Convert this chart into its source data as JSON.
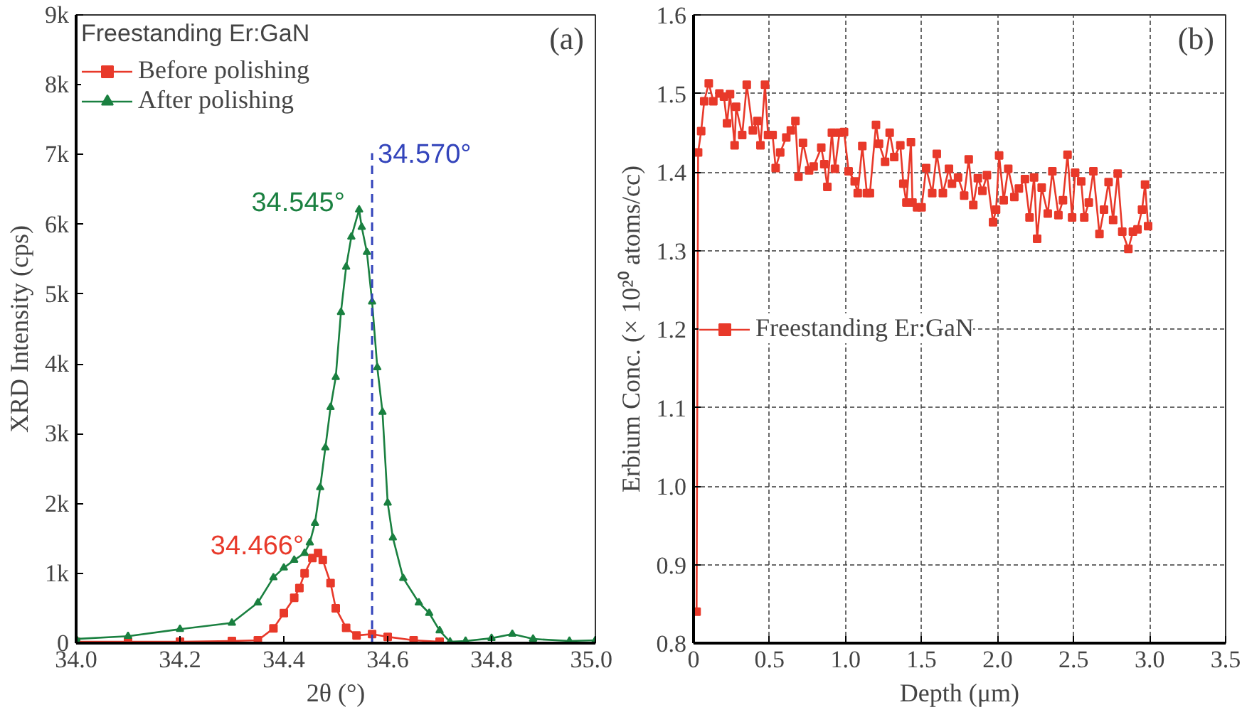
{
  "chart_data": [
    {
      "type": "line",
      "xlabel": "2θ (°)",
      "ylabel": "XRD Intensity (cps)",
      "legend_title": "Freestanding Er:GaN",
      "legend": "top left",
      "grid": false,
      "xlim": [
        34.0,
        35.0
      ],
      "xticks": [
        {
          "value": 34.0,
          "label": "34.0"
        },
        34.2,
        34.4,
        34.6,
        34.8,
        {
          "value": 35.0,
          "label": "35.0"
        }
      ],
      "ylim": [
        0,
        9000
      ],
      "yticks": [
        {
          "value": 0,
          "label": "0"
        },
        {
          "value": 1000,
          "label": "1k"
        },
        {
          "value": 2000,
          "label": "2k"
        },
        {
          "value": 3000,
          "label": "3k"
        },
        {
          "value": 4000,
          "label": "4k"
        },
        {
          "value": 5000,
          "label": "5k"
        },
        {
          "value": 6000,
          "label": "6k"
        },
        {
          "value": 7000,
          "label": "7k"
        },
        {
          "value": 8000,
          "label": "8k"
        },
        {
          "value": 9000,
          "label": "9k"
        }
      ],
      "series": [
        {
          "name": "Before polishing",
          "color": "#e8392a",
          "marker": "square",
          "x": [
            34.0,
            34.1,
            34.2,
            34.3,
            34.35,
            34.38,
            34.4,
            34.42,
            34.43,
            34.44,
            34.455,
            34.466,
            34.475,
            34.49,
            34.5,
            34.52,
            34.54,
            34.57,
            34.6,
            34.65,
            34.7
          ],
          "values": [
            20,
            20,
            20,
            30,
            40,
            210,
            430,
            650,
            790,
            1000,
            1220,
            1290,
            1190,
            860,
            500,
            220,
            110,
            130,
            90,
            40,
            20
          ]
        },
        {
          "name": "After polishing",
          "color": "#1a8040",
          "marker": "triangle",
          "x": [
            34.0,
            34.1,
            34.2,
            34.3,
            34.35,
            34.38,
            34.4,
            34.42,
            34.44,
            34.45,
            34.46,
            34.47,
            34.48,
            34.49,
            34.5,
            34.51,
            34.52,
            34.53,
            34.545,
            34.55,
            34.56,
            34.57,
            34.58,
            34.59,
            34.6,
            34.61,
            34.63,
            34.66,
            34.68,
            34.7,
            34.72,
            34.75,
            34.8,
            34.84,
            34.88,
            34.95,
            35.0
          ],
          "values": [
            60,
            100,
            200,
            290,
            580,
            940,
            1080,
            1190,
            1290,
            1440,
            1720,
            2230,
            2800,
            3380,
            3810,
            4740,
            5390,
            5820,
            6210,
            5960,
            5600,
            4890,
            3950,
            3310,
            2010,
            1510,
            930,
            580,
            430,
            180,
            20,
            30,
            70,
            130,
            60,
            30,
            40
          ]
        }
      ],
      "ref_lines": [
        {
          "axis": "x",
          "value": 34.57,
          "label": "34.570°",
          "color": "#3344bb",
          "line_style": "dashed"
        }
      ],
      "annotations": [
        "(a)",
        {
          "text": "34.545°",
          "x": 34.545,
          "y": 6210
        },
        {
          "text": "34.466°",
          "x": 34.466,
          "y": 1290
        }
      ]
    },
    {
      "type": "line",
      "xlabel": "Depth (μm)",
      "ylabel": "Erbium Conc. (× 10²⁰ atoms/cc)",
      "legend": "left",
      "grid": true,
      "marker": "square",
      "xlim": [
        0,
        3.5
      ],
      "xticks": [
        0,
        0.5,
        {
          "value": 1.0,
          "label": "1.0"
        },
        1.5,
        {
          "value": 2.0,
          "label": "2.0"
        },
        2.5,
        {
          "value": 3.0,
          "label": "3.0"
        },
        3.5
      ],
      "ylim": [
        0.8,
        1.6
      ],
      "yticks": [
        0.8,
        0.9,
        {
          "value": 1.0,
          "label": "1.0"
        },
        1.1,
        1.2,
        1.3,
        1.4,
        1.5,
        1.6
      ],
      "series": [
        {
          "name": "Freestanding Er:GaN",
          "color": "#e8392a",
          "x": [
            0.02,
            0.03,
            0.05,
            0.07,
            0.1,
            0.13,
            0.17,
            0.2,
            0.22,
            0.24,
            0.27,
            0.28,
            0.32,
            0.35,
            0.39,
            0.42,
            0.44,
            0.47,
            0.49,
            0.52,
            0.54,
            0.57,
            0.61,
            0.64,
            0.67,
            0.69,
            0.72,
            0.76,
            0.79,
            0.84,
            0.86,
            0.88,
            0.91,
            0.93,
            0.96,
            0.99,
            1.02,
            1.06,
            1.08,
            1.11,
            1.14,
            1.16,
            1.2,
            1.22,
            1.26,
            1.29,
            1.32,
            1.36,
            1.38,
            1.4,
            1.43,
            1.44,
            1.47,
            1.5,
            1.53,
            1.57,
            1.6,
            1.64,
            1.68,
            1.7,
            1.74,
            1.78,
            1.81,
            1.84,
            1.87,
            1.9,
            1.93,
            1.97,
            1.99,
            2.01,
            2.04,
            2.07,
            2.11,
            2.14,
            2.18,
            2.21,
            2.24,
            2.26,
            2.29,
            2.33,
            2.36,
            2.4,
            2.43,
            2.46,
            2.49,
            2.51,
            2.55,
            2.57,
            2.6,
            2.63,
            2.67,
            2.7,
            2.73,
            2.76,
            2.79,
            2.82,
            2.86,
            2.89,
            2.92,
            2.95,
            2.97,
            2.99
          ],
          "values": [
            0.84,
            1.425,
            1.452,
            1.49,
            1.513,
            1.49,
            1.5,
            1.496,
            1.462,
            1.499,
            1.434,
            1.483,
            1.447,
            1.511,
            1.453,
            1.465,
            1.434,
            1.511,
            1.447,
            1.447,
            1.405,
            1.425,
            1.444,
            1.453,
            1.465,
            1.394,
            1.437,
            1.402,
            1.407,
            1.431,
            1.41,
            1.381,
            1.45,
            1.404,
            1.45,
            1.451,
            1.401,
            1.388,
            1.373,
            1.433,
            1.373,
            1.373,
            1.46,
            1.436,
            1.413,
            1.45,
            1.419,
            1.434,
            1.385,
            1.361,
            1.438,
            1.361,
            1.355,
            1.355,
            1.405,
            1.373,
            1.423,
            1.373,
            1.404,
            1.385,
            1.393,
            1.37,
            1.416,
            1.358,
            1.392,
            1.376,
            1.396,
            1.336,
            1.352,
            1.421,
            1.364,
            1.404,
            1.368,
            1.379,
            1.391,
            1.342,
            1.393,
            1.315,
            1.38,
            1.347,
            1.401,
            1.345,
            1.364,
            1.422,
            1.342,
            1.399,
            1.388,
            1.342,
            1.361,
            1.401,
            1.321,
            1.352,
            1.387,
            1.339,
            1.398,
            1.324,
            1.302,
            1.324,
            1.327,
            1.352,
            1.384,
            1.331
          ]
        }
      ],
      "annotations": [
        "(b)"
      ]
    }
  ]
}
